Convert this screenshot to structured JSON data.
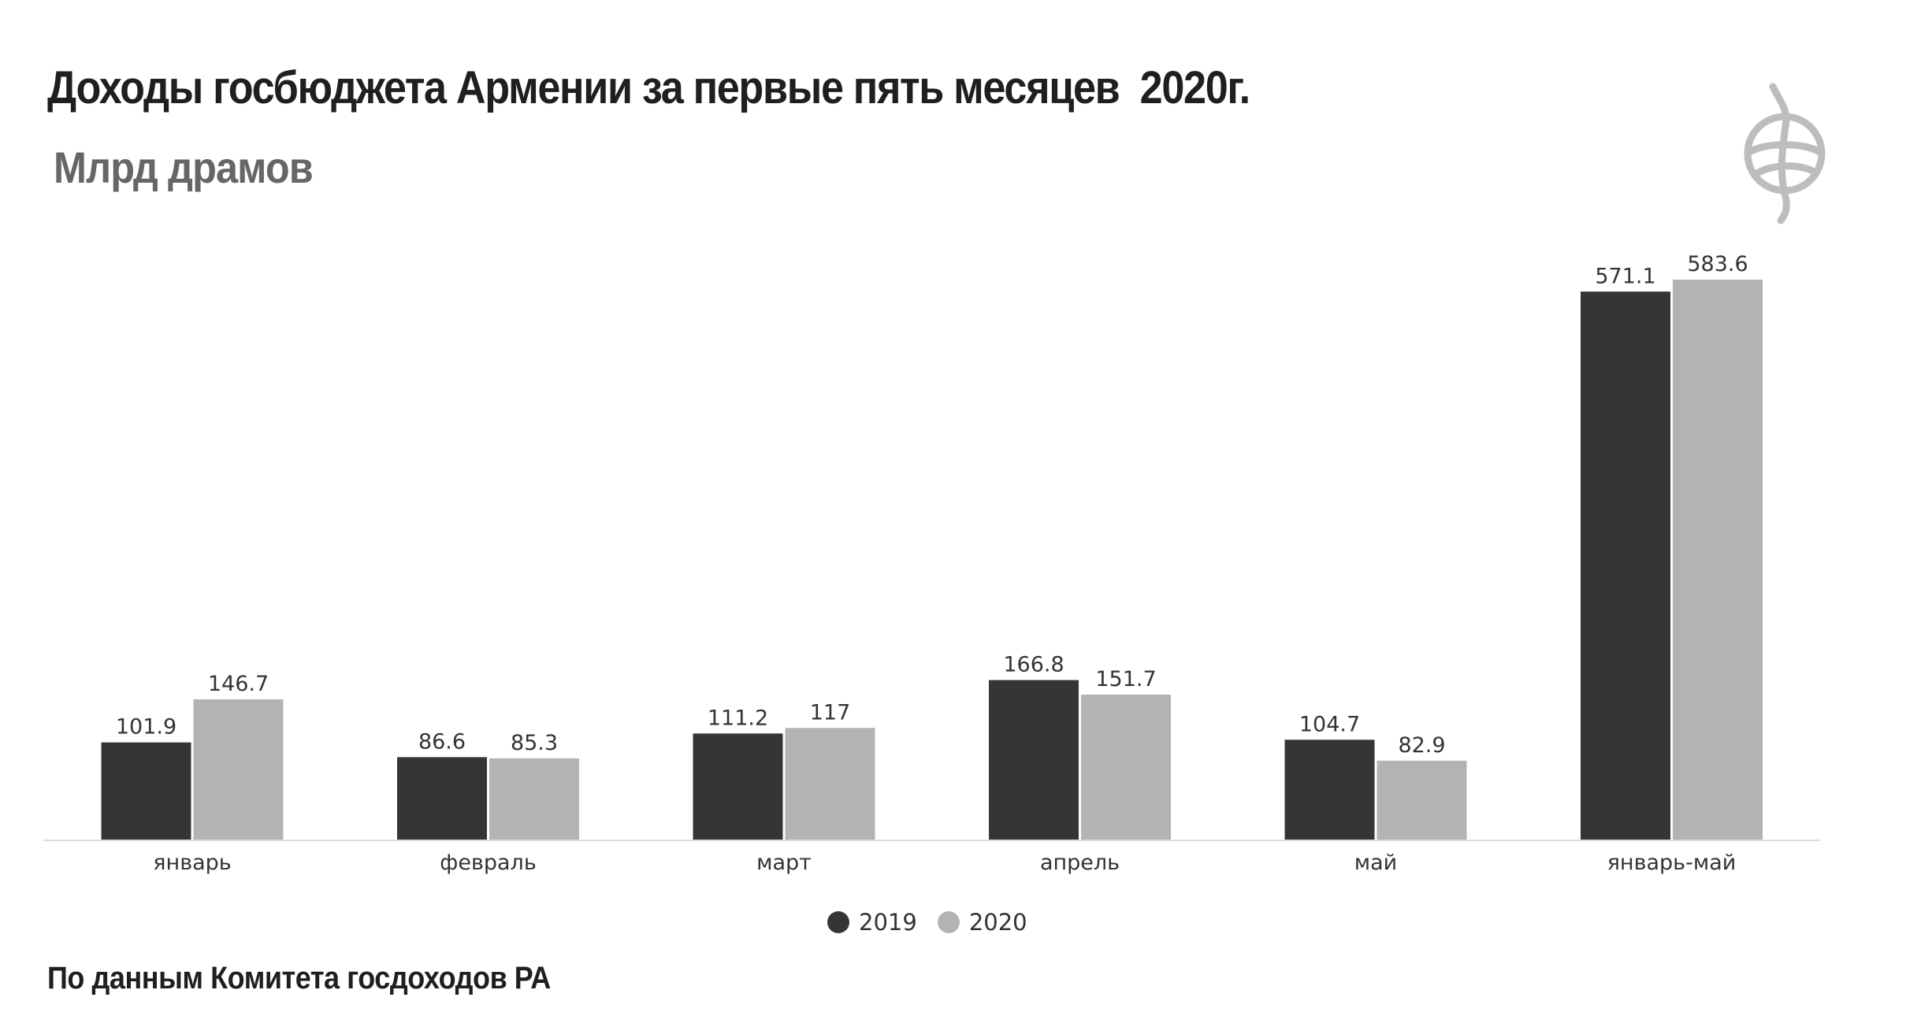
{
  "title": "Доходы госбюджета Армении за первые пять месяцев  2020г.",
  "subtitle": "Млрд драмов",
  "source": "По данным Комитета госдоходов РА",
  "colors": {
    "series_2019": "#353535",
    "series_2020": "#b3b3b3",
    "axis": "#dddddd",
    "text": "#333333"
  },
  "chart_data": {
    "type": "bar",
    "categories": [
      "январь",
      "февраль",
      "март",
      "апрель",
      "май",
      "январь-май"
    ],
    "series": [
      {
        "name": "2019",
        "values": [
          101.9,
          86.6,
          111.2,
          166.8,
          104.7,
          571.1
        ],
        "labels": [
          "101.9",
          "86.6",
          "111.2",
          "166.8",
          "104.7",
          "571.1"
        ]
      },
      {
        "name": "2020",
        "values": [
          146.7,
          85.3,
          117,
          151.7,
          82.9,
          583.6
        ],
        "labels": [
          "146.7",
          "85.3",
          "117",
          "151.7",
          "82.9",
          "583.6"
        ]
      }
    ],
    "ylim": [
      0,
      583.6
    ],
    "grid": false,
    "legend": "bottom-center",
    "title": "Доходы госбюджета Армении за первые пять месяцев  2020г.",
    "ylabel": "Млрд драмов"
  },
  "logo": {
    "icon": "logo-icon"
  }
}
